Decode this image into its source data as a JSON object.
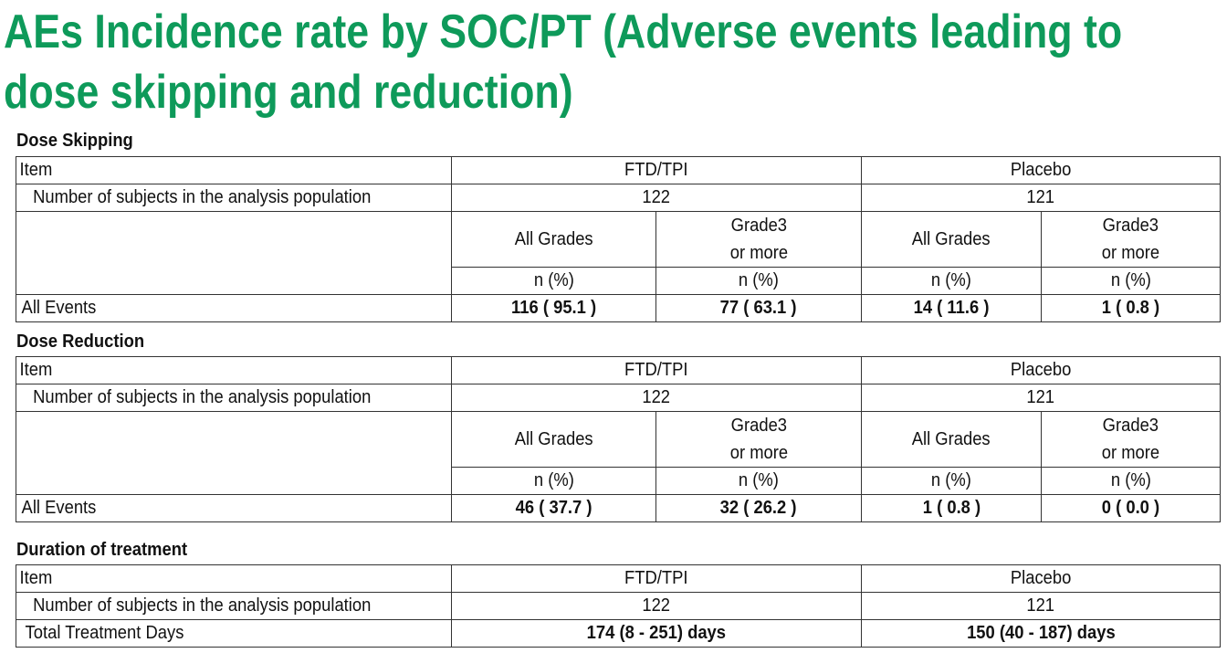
{
  "title": {
    "line1": "AEs Incidence rate by SOC/PT (Adverse events leading to",
    "line2": "dose skipping and reduction)"
  },
  "colors": {
    "title": "#0e9a5a",
    "border": "#333333",
    "text": "#111111"
  },
  "dose_skipping": {
    "label": "Dose Skipping",
    "item_label": "Item",
    "arm1": "FTD/TPI",
    "arm2": "Placebo",
    "subjects_label": "Number of subjects in the analysis population",
    "arm1_n": "122",
    "arm2_n": "121",
    "all_grades": "All Grades",
    "grade3_line1": "Grade3",
    "grade3_line2": "or more",
    "n_pct": "n (%)",
    "events_label": "All Events",
    "events": [
      "116 ( 95.1 )",
      "77 ( 63.1 )",
      "14 ( 11.6 )",
      "1 ( 0.8 )"
    ]
  },
  "dose_reduction": {
    "label": "Dose Reduction",
    "item_label": "Item",
    "arm1": "FTD/TPI",
    "arm2": "Placebo",
    "subjects_label": "Number of subjects in the analysis population",
    "arm1_n": "122",
    "arm2_n": "121",
    "all_grades": "All Grades",
    "grade3_line1": "Grade3",
    "grade3_line2": "or more",
    "n_pct": "n (%)",
    "events_label": "All Events",
    "events": [
      "46 ( 37.7 )",
      "32 ( 26.2 )",
      "1 ( 0.8 )",
      "0 ( 0.0 )"
    ]
  },
  "duration": {
    "label": "Duration of treatment",
    "item_label": "Item",
    "arm1": "FTD/TPI",
    "arm2": "Placebo",
    "subjects_label": "Number of subjects in the analysis population",
    "arm1_n": "122",
    "arm2_n": "121",
    "days_label": "Total Treatment Days",
    "arm1_days": "174 (8 - 251) days",
    "arm2_days": "150 (40 - 187) days"
  }
}
